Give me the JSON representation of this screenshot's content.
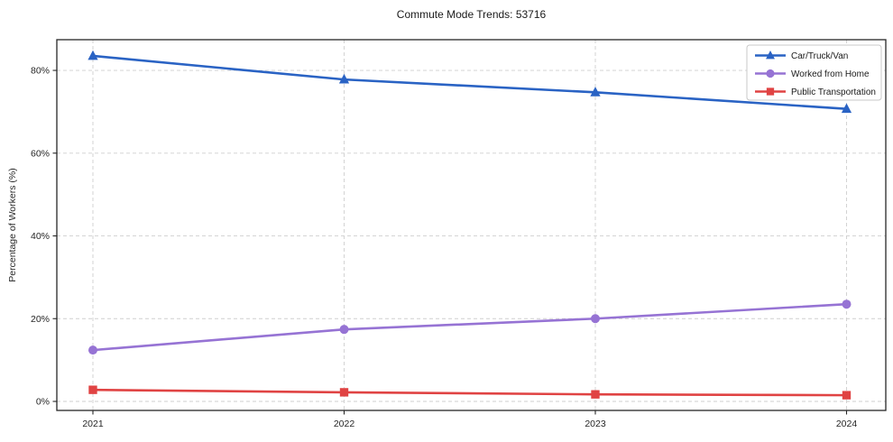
{
  "chart_data": {
    "type": "line",
    "title": "Commute Mode Trends: 53716",
    "xlabel": "",
    "ylabel": "Percentage of Workers (%)",
    "categories": [
      "2021",
      "2022",
      "2023",
      "2024"
    ],
    "series": [
      {
        "name": "Car/Truck/Van",
        "color": "#2a63c4",
        "marker": "triangle",
        "values": [
          83.5,
          77.8,
          74.7,
          70.7
        ]
      },
      {
        "name": "Worked from Home",
        "color": "#9673d4",
        "marker": "circle",
        "values": [
          12.4,
          17.4,
          20.0,
          23.5
        ]
      },
      {
        "name": "Public Transportation",
        "color": "#e04343",
        "marker": "square",
        "values": [
          2.8,
          2.2,
          1.7,
          1.5
        ]
      }
    ],
    "ytick_values": [
      0,
      20,
      40,
      60,
      80
    ],
    "ytick_labels": [
      "0%",
      "20%",
      "40%",
      "60%",
      "80%"
    ],
    "ylim": [
      -2.18,
      87.42
    ],
    "grid": true,
    "legend_position": "upper right",
    "background_color": "#ffffff"
  }
}
